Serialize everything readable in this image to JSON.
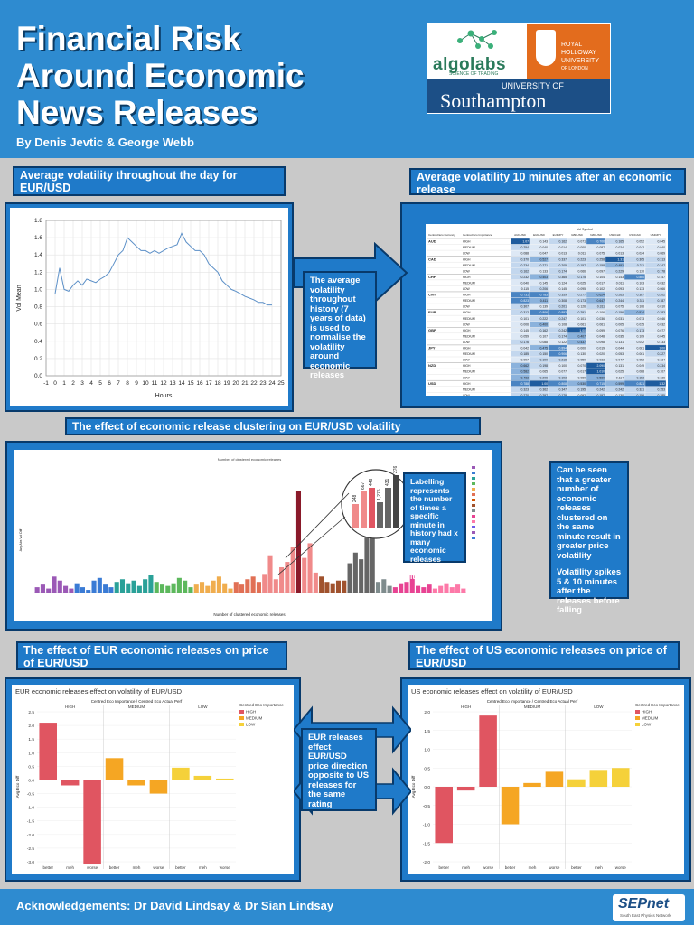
{
  "header": {
    "title_line1": "Financial Risk",
    "title_line2": "Around Economic",
    "title_line3": "News Releases",
    "authors": "By Denis Jevtic & George Webb"
  },
  "logos": {
    "algolabs": "algolabs",
    "algolabs_sub": "SCIENCE OF TRADING",
    "rh_line1": "ROYAL",
    "rh_line2": "HOLLOWAY",
    "rh_line3": "UNIVERSITY",
    "rh_line4": "OF LONDON",
    "soton_line1": "UNIVERSITY OF",
    "soton_line2": "Southampton",
    "sepnet": "SEPnet",
    "sepnet_sub": "South East Physics Network"
  },
  "sections": {
    "daily_vol": "Average volatility throughout the day for EUR/USD",
    "after_release": "Average volatility 10 minutes after an economic release",
    "clustering": "The effect of economic release clustering on EUR/USD volatility",
    "eur_releases": "The effect of EUR economic releases on price of EUR/USD",
    "us_releases": "The effect of US economic releases on price of EUR/USD"
  },
  "notes": {
    "normalise": "The average volatility throughout history (7 years of data) is used to normalise the volatility around economic releases",
    "labelling": "Labelling represents the number of times a specific minute in history had x many economic releases clustered on it",
    "greater": "Can be seen that a greater number of economic releases clustered on the same minute result in greater price volatility",
    "spikes": "Volatility spikes 5 & 10 minutes after the releases before falling",
    "opposite": "EUR releases effect EUR/USD price direction opposite to US releases for the same rating"
  },
  "chart_data": [
    {
      "type": "line",
      "title": "",
      "xlabel": "Hours",
      "ylabel": "Vol Mean",
      "xlim": [
        -1,
        25
      ],
      "ylim": [
        0,
        1.8
      ],
      "x_ticks": [
        -1,
        0,
        1,
        2,
        3,
        4,
        5,
        6,
        7,
        8,
        9,
        10,
        11,
        12,
        13,
        14,
        15,
        16,
        17,
        18,
        19,
        20,
        21,
        22,
        23,
        24,
        25
      ],
      "y_ticks": [
        0.0,
        0.2,
        0.4,
        0.6,
        0.8,
        1.0,
        1.2,
        1.4,
        1.6,
        1.8
      ],
      "x": [
        0,
        0.5,
        1,
        1.5,
        2,
        2.5,
        3,
        3.5,
        4,
        4.5,
        5,
        5.5,
        6,
        6.5,
        7,
        7.5,
        8,
        8.5,
        9,
        9.5,
        10,
        10.5,
        11,
        11.5,
        12,
        12.5,
        13,
        13.5,
        14,
        14.5,
        15,
        15.5,
        16,
        16.5,
        17,
        17.5,
        18,
        18.5,
        19,
        19.5,
        20,
        20.5,
        21,
        21.5,
        22,
        22.5,
        23,
        23.5,
        24
      ],
      "values": [
        0.95,
        1.25,
        1.0,
        0.98,
        1.05,
        1.1,
        1.05,
        1.12,
        1.1,
        1.08,
        1.12,
        1.15,
        1.2,
        1.3,
        1.4,
        1.45,
        1.6,
        1.55,
        1.5,
        1.45,
        1.45,
        1.42,
        1.45,
        1.42,
        1.45,
        1.48,
        1.5,
        1.52,
        1.65,
        1.55,
        1.5,
        1.45,
        1.45,
        1.4,
        1.3,
        1.25,
        1.2,
        1.1,
        1.05,
        1.0,
        0.98,
        0.95,
        0.92,
        0.9,
        0.88,
        0.85,
        0.85,
        0.82,
        0.82
      ]
    },
    {
      "type": "bar",
      "title": "Number of clustered economic releases",
      "xlabel": "Number of clustered economic releases",
      "ylabel": "Avg Abs Vol Diff",
      "values": [
        0.4,
        0.6,
        0.3,
        1.2,
        0.9,
        0.5,
        0.3,
        0.7,
        0.4,
        0.2,
        0.9,
        1.1,
        0.6,
        0.4,
        0.8,
        1.0,
        0.7,
        0.9,
        0.5,
        1.0,
        1.3,
        0.8,
        0.6,
        0.5,
        0.7,
        1.1,
        0.9,
        0.4,
        0.6,
        0.8,
        0.5,
        0.9,
        1.2,
        0.7,
        0.3,
        0.8,
        0.6,
        1.0,
        1.2,
        0.8,
        1.4,
        2.8,
        1.0,
        1.9,
        2.3,
        3.4,
        7.6,
        2.6,
        3.7,
        1.5,
        1.2,
        0.8,
        0.7,
        0.9,
        0.9,
        2.2,
        3.0,
        2.5,
        6.0,
        4.4,
        0.8,
        1.0,
        0.5,
        0.4,
        0.7,
        0.8,
        1.3,
        0.5,
        0.4,
        0.6,
        0.3,
        0.5,
        0.7,
        0.4,
        0.6,
        0.3
      ],
      "zoom_labels": [
        "248",
        "667",
        "446",
        "1,275",
        "431",
        "276"
      ]
    },
    {
      "type": "bar",
      "title": "EUR economic releases effect on volatility of EUR/USD",
      "subtitle": "Centred Eco Importance / Centred Eco Actual Perf",
      "ylabel": "Avg Eco Diff",
      "legend_title": "Centred Eco Importance",
      "legend": [
        "HIGH",
        "MEDIUM",
        "LOW"
      ],
      "colors": [
        "#e05561",
        "#f5a623",
        "#f5d13a"
      ],
      "groups": [
        "HIGH",
        "MEDIUM",
        "LOW"
      ],
      "categories": [
        "better",
        "meh",
        "worse"
      ],
      "ylim": [
        -3.0,
        2.5
      ],
      "y_ticks": [
        2.5,
        2.0,
        1.5,
        1.0,
        0.5,
        0.0,
        -0.5,
        -1.0,
        -1.5,
        -2.0,
        -2.5,
        -3.0
      ],
      "series": [
        {
          "name": "HIGH",
          "values": [
            2.1,
            -0.2,
            -3.1
          ]
        },
        {
          "name": "MEDIUM",
          "values": [
            0.8,
            -0.2,
            -0.5
          ]
        },
        {
          "name": "LOW",
          "values": [
            0.45,
            0.15,
            0.05
          ]
        }
      ]
    },
    {
      "type": "bar",
      "title": "US economic releases effect on volatility of EUR/USD",
      "subtitle": "Centred Eco Importance / Centred Eco Actual Perf",
      "ylabel": "Avg Eco Diff",
      "legend_title": "Centred Eco Importance",
      "legend": [
        "HIGH",
        "MEDIUM",
        "LOW"
      ],
      "colors": [
        "#e05561",
        "#f5a623",
        "#f5d13a"
      ],
      "groups": [
        "HIGH",
        "MEDIUM",
        "LOW"
      ],
      "categories": [
        "better",
        "meh",
        "worse"
      ],
      "ylim": [
        -2.0,
        2.0
      ],
      "y_ticks": [
        2.0,
        1.5,
        1.0,
        0.5,
        0.0,
        -0.5,
        -1.0,
        -1.5,
        -2.0
      ],
      "series": [
        {
          "name": "HIGH",
          "values": [
            -1.5,
            -0.1,
            1.9
          ]
        },
        {
          "name": "MEDIUM",
          "values": [
            -1.0,
            0.1,
            0.4
          ]
        },
        {
          "name": "LOW",
          "values": [
            0.2,
            0.45,
            0.5
          ]
        }
      ]
    }
  ],
  "table": {
    "title": "Vol Symbol",
    "col_headers": [
      "Centred Eco Currency",
      "Centred Eco Importance",
      "AUDUSD",
      "EURUSD",
      "EURJPY",
      "GBPUSD",
      "NZDUSD",
      "USDCHF",
      "USDCAD",
      "USDJPY"
    ],
    "rows": [
      [
        "AUD",
        "HIGH",
        "1.07",
        "0.143",
        "0.162",
        "0.071",
        "0.706",
        "0.165",
        "0.052",
        "0.045"
      ],
      [
        "",
        "MEDIUM",
        "0.254",
        "0.040",
        "0.014",
        "0.000",
        "0.087",
        "0.024",
        "0.042",
        "0.040"
      ],
      [
        "",
        "LOW",
        "0.088",
        "0.047",
        "0.013",
        "0.011",
        "0.075",
        "0.013",
        "0.024",
        "0.069"
      ],
      [
        "CAD",
        "HIGH",
        "0.370",
        "0.527",
        "0.337",
        "0.223",
        "0.258",
        "1.31",
        "0.305",
        "0.313"
      ],
      [
        "",
        "MEDIUM",
        "0.234",
        "0.271",
        "0.205",
        "0.157",
        "0.158",
        "0.491",
        "0.211",
        "0.247"
      ],
      [
        "",
        "LOW",
        "0.162",
        "0.133",
        "0.174",
        "0.066",
        "0.097",
        "0.229",
        "0.130",
        "0.178"
      ],
      [
        "CHF",
        "HIGH",
        "0.232",
        "0.403",
        "0.365",
        "0.175",
        "0.104",
        "0.143",
        "0.860",
        "0.147"
      ],
      [
        "",
        "MEDIUM",
        "0.040",
        "0.145",
        "0.124",
        "0.025",
        "0.017",
        "0.011",
        "0.103",
        "0.032"
      ],
      [
        "",
        "LOW",
        "0.115",
        "0.206",
        "0.145",
        "0.095",
        "0.102",
        "0.093",
        "0.133",
        "0.066"
      ],
      [
        "CNY",
        "HIGH",
        "0.731",
        "0.783",
        "0.359",
        "0.277",
        "0.624",
        "0.265",
        "0.387",
        "0.202"
      ],
      [
        "",
        "MEDIUM",
        "0.823",
        "0.411",
        "0.308",
        "0.173",
        "0.647",
        "0.244",
        "0.311",
        "0.187"
      ],
      [
        "",
        "LOW",
        "0.307",
        "0.139",
        "0.201",
        "0.126",
        "0.311",
        "0.075",
        "0.106",
        "0.010"
      ],
      [
        "EUR",
        "HIGH",
        "0.312",
        "0.806",
        "0.893",
        "0.291",
        "0.106",
        "0.156",
        "0.574",
        "0.283"
      ],
      [
        "",
        "MEDIUM",
        "0.101",
        "0.222",
        "0.247",
        "0.101",
        "0.036",
        "0.031",
        "0.073",
        "0.046"
      ],
      [
        "",
        "LOW",
        "0.006",
        "0.400",
        "0.108",
        "0.061",
        "0.061",
        "0.005",
        "0.035",
        "0.032"
      ],
      [
        "GBP",
        "HIGH",
        "0.145",
        "0.162",
        "0.242",
        "1.00",
        "0.099",
        "0.076",
        "0.173",
        "0.077"
      ],
      [
        "",
        "MEDIUM",
        "0.059",
        "0.107",
        "0.174",
        "0.407",
        "0.048",
        "0.035",
        "0.109",
        "0.045"
      ],
      [
        "",
        "LOW",
        "0.176",
        "0.088",
        "0.122",
        "0.437",
        "0.098",
        "0.131",
        "0.042",
        "0.133"
      ],
      [
        "JPY",
        "HIGH",
        "0.042",
        "0.475",
        "0.894",
        "0.000",
        "0.019",
        "0.044",
        "0.081",
        "1.00"
      ],
      [
        "",
        "MEDIUM",
        "0.185",
        "0.150",
        "0.906",
        "0.130",
        "0.020",
        "0.053",
        "0.061",
        "0.227"
      ],
      [
        "",
        "LOW",
        "0.097",
        "0.190",
        "0.218",
        "0.050",
        "0.033",
        "0.047",
        "0.052",
        "0.134"
      ],
      [
        "NZD",
        "HIGH",
        "0.662",
        "0.198",
        "0.100",
        "0.070",
        "2.090",
        "0.131",
        "0.049",
        "0.234"
      ],
      [
        "",
        "MEDIUM",
        "0.582",
        "0.065",
        "0.077",
        "0.017",
        "1.010",
        "0.025",
        "0.088",
        "0.107"
      ],
      [
        "",
        "LOW",
        "0.463",
        "0.206",
        "0.193",
        "0.080",
        "0.580",
        "0.114",
        "0.153",
        "0.136"
      ],
      [
        "USD",
        "HIGH",
        "0.788",
        "1.00",
        "0.808",
        "0.530",
        "0.715",
        "0.599",
        "0.821",
        "1.32"
      ],
      [
        "",
        "MEDIUM",
        "0.323",
        "0.362",
        "0.347",
        "0.195",
        "0.242",
        "0.242",
        "0.321",
        "0.353"
      ],
      [
        "",
        "LOW",
        "0.270",
        "0.297",
        "0.178",
        "0.092",
        "0.197",
        "0.130",
        "0.156",
        "0.185"
      ]
    ]
  },
  "footer": {
    "ack": "Acknowledgements: Dr David Lindsay & Dr Sian Lindsay"
  },
  "colors": {
    "header_blue": "#2e8bd0",
    "panel_blue": "#1f7ac9",
    "border_navy": "#083a6b",
    "high": "#e05561",
    "medium": "#f5a623",
    "low": "#f5d13a"
  }
}
